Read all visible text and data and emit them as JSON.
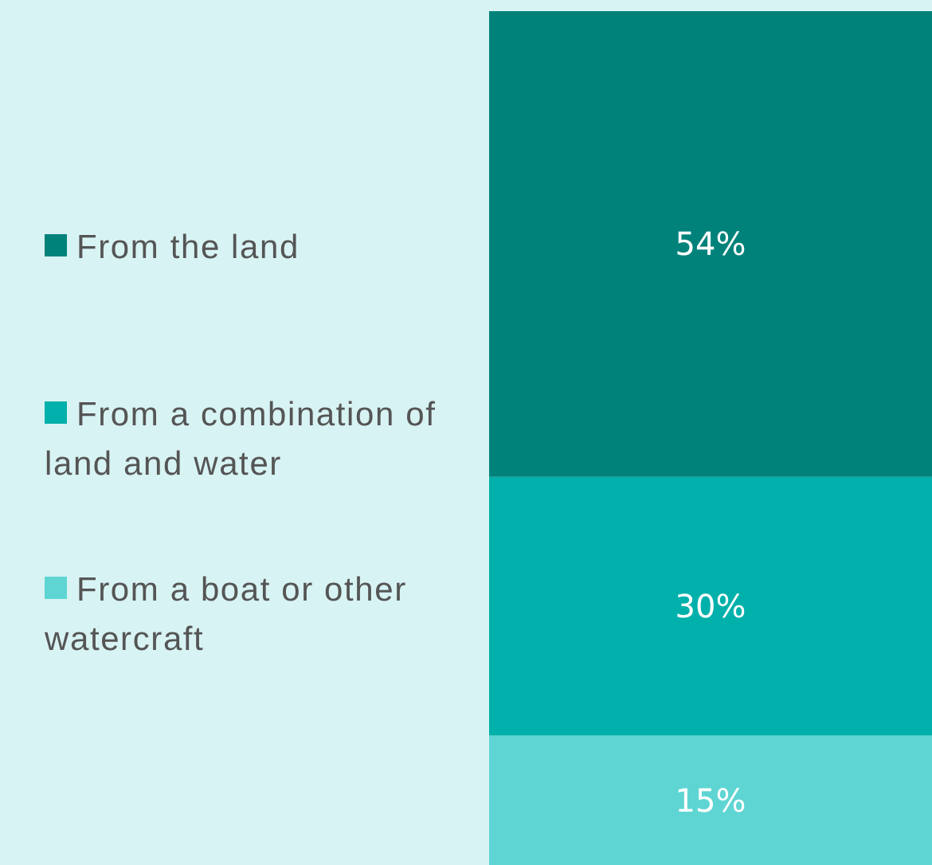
{
  "chart_data": {
    "type": "bar",
    "stacked": true,
    "categories": [
      null
    ],
    "ylim": [
      0,
      99
    ],
    "legend": "left",
    "series": [
      {
        "name": "From a boat or other watercraft",
        "color": "#5fd5d3",
        "values": [
          15
        ],
        "value_labels": [
          "15%"
        ]
      },
      {
        "name": "From a combination of land and water",
        "color": "#00b0aa",
        "values": [
          30
        ],
        "value_labels": [
          "30%"
        ]
      },
      {
        "name": "From the land",
        "color": "#00827b",
        "values": [
          54
        ],
        "value_labels": [
          "54%"
        ]
      }
    ]
  }
}
